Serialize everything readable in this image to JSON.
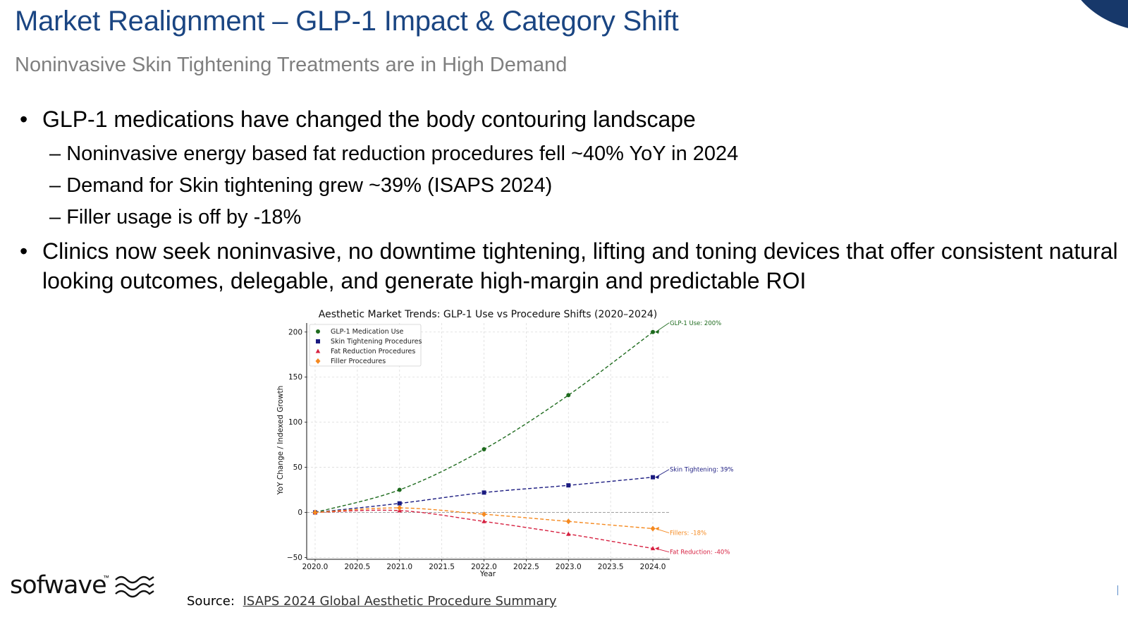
{
  "slide": {
    "title": "Market Realignment – GLP-1 Impact & Category Shift",
    "subtitle": "Noninvasive Skin Tightening Treatments are in High Demand",
    "bullets": [
      {
        "text": "GLP-1 medications have changed the body contouring landscape",
        "sub": [
          "Noninvasive energy based fat reduction procedures fell ~40% YoY in 2024",
          "Demand for Skin tightening grew ~39% (ISAPS 2024)",
          "Filler usage is off by -18%"
        ]
      },
      {
        "text": "Clinics now seek noninvasive, no downtime tightening, lifting and toning devices that offer consistent natural looking outcomes, delegable, and generate high-margin and predictable ROI",
        "sub": []
      }
    ],
    "source_label": "Source:",
    "source_link": "ISAPS 2024 Global Aesthetic Procedure Summary",
    "logo_text": "sofwave",
    "logo_tm": "™",
    "accent_color": "#1a4582",
    "corner_color": "#17386a"
  },
  "chart_data": {
    "type": "line",
    "title": "Aesthetic Market Trends: GLP-1 Use vs Procedure Shifts (2020–2024)",
    "xlabel": "Year",
    "ylabel": "YoY Change / Indexed Growth",
    "xlim": [
      2019.9,
      2024.2
    ],
    "ylim": [
      -52,
      210
    ],
    "x_ticks": [
      "2020.0",
      "2020.5",
      "2021.0",
      "2021.5",
      "2022.0",
      "2022.5",
      "2023.0",
      "2023.5",
      "2024.0"
    ],
    "x_tick_values": [
      2020,
      2020.5,
      2021,
      2021.5,
      2022,
      2022.5,
      2023,
      2023.5,
      2024
    ],
    "y_ticks": [
      -50,
      0,
      50,
      100,
      150,
      200
    ],
    "grid": true,
    "legend_position": "top-left",
    "x": [
      2020,
      2021,
      2022,
      2023,
      2024
    ],
    "series": [
      {
        "name": "GLP-1 Medication Use",
        "values": [
          0,
          25,
          70,
          130,
          200
        ],
        "color": "#1e6b1e",
        "marker": "circle",
        "annotation": "GLP-1 Use: 200%"
      },
      {
        "name": "Skin Tightening Procedures",
        "values": [
          0,
          10,
          22,
          30,
          39
        ],
        "color": "#1a1a80",
        "marker": "square",
        "annotation": "Skin Tightening: 39%"
      },
      {
        "name": "Fat Reduction Procedures",
        "values": [
          0,
          2,
          -10,
          -24,
          -40
        ],
        "color": "#d62040",
        "marker": "triangle",
        "annotation": "Fat Reduction: -40%"
      },
      {
        "name": "Filler Procedures",
        "values": [
          0,
          5,
          -2,
          -10,
          -18
        ],
        "color": "#f5891f",
        "marker": "diamond",
        "annotation": "Fillers: -18%"
      }
    ]
  }
}
